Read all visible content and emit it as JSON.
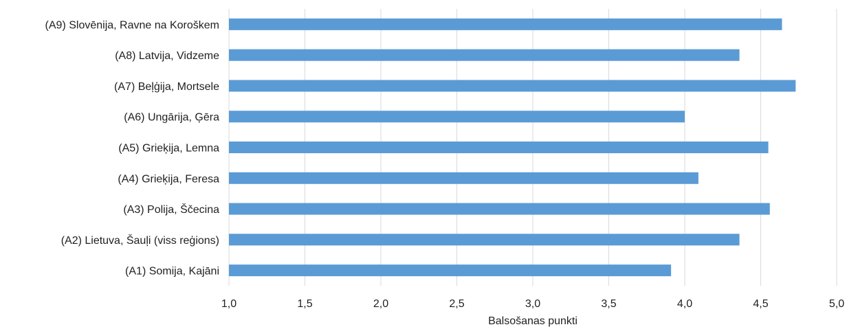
{
  "chart_data": {
    "type": "bar",
    "orientation": "horizontal",
    "categories": [
      "(A9) Slovēnija, Ravne na Koroškem",
      "(A8) Latvija, Vidzeme",
      "(A7) Beļģija, Mortsele",
      "(A6) Ungārija, Ģēra",
      "(A5) Grieķija, Lemna",
      "(A4) Grieķija, Feresa",
      "(A3) Polija, Ščecina",
      "(A2) Lietuva, Šauļi (viss reģions)",
      "(A1) Somija, Kajāni"
    ],
    "values": [
      4.64,
      4.36,
      4.73,
      4.0,
      4.55,
      4.09,
      4.56,
      4.36,
      3.91
    ],
    "xlabel": "Balsošanas punkti",
    "ylabel": "",
    "xlim": [
      1.0,
      5.0
    ],
    "xticks": [
      1.0,
      1.5,
      2.0,
      2.5,
      3.0,
      3.5,
      4.0,
      4.5,
      5.0
    ],
    "tick_labels": [
      "1,0",
      "1,5",
      "2,0",
      "2,5",
      "3,0",
      "3,5",
      "4,0",
      "4,5",
      "5,0"
    ],
    "grid": "vertical",
    "legend": "none",
    "bar_color": "#5b9bd5",
    "gridline_color": "#d9d9d9"
  }
}
